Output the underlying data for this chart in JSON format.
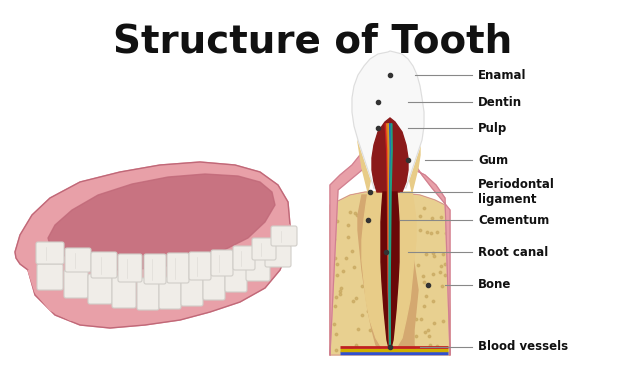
{
  "title": "Structure of Tooth",
  "title_fontsize": 28,
  "title_fontweight": "bold",
  "title_color": "#111111",
  "background_color": "#ffffff",
  "labels": [
    "Enamal",
    "Dentin",
    "Pulp",
    "Gum",
    "Periodontal\nligament",
    "Cementum",
    "Root canal",
    "Bone",
    "Blood vessels"
  ],
  "colors": {
    "enamel": "#f8f8f8",
    "enamel_outline": "#dddddd",
    "dentin": "#e8cc88",
    "pulp": "#7a1010",
    "pulp_chamber": "#8b1a1a",
    "gum": "#e8a0a8",
    "gum_dark": "#cc7080",
    "gum_outline": "#d08090",
    "bone": "#e8d090",
    "bone_dot": "#c8a860",
    "cementum": "#d4a870",
    "root_canal_inner": "#6a0808",
    "nerve_red": "#cc2020",
    "nerve_orange": "#e87020",
    "nerve_blue": "#2060cc",
    "nerve_yellow": "#d0a020",
    "nerve_teal": "#20a080",
    "blood_blue": "#3050d0",
    "blood_yellow": "#d0b000",
    "blood_red": "#c02020",
    "jaw_gum": "#e8a0a8",
    "jaw_gum_inner": "#cc7080",
    "jaw_gum_dark": "#c06878",
    "teeth_white": "#f0ede8",
    "teeth_outline": "#d0cdc8",
    "teeth_shadow": "#e0ddd8"
  }
}
